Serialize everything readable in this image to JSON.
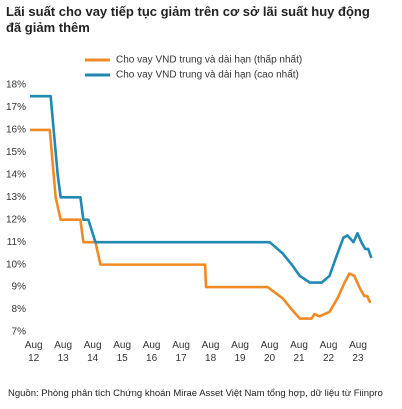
{
  "chart_data": {
    "type": "line",
    "title": "Lãi suất cho vay tiếp tục giảm trên cơ sở lãi suất huy động đã giảm thêm",
    "source": "Nguồn: Phòng phân tích Chứng khoán Mirae Asset Việt Nam tổng hợp, dữ liệu từ Fiinpro",
    "series": [
      {
        "name": "Cho vay VND trung và dài hạn (thấp nhất)",
        "color": "#f08a24",
        "x": [
          2012.5,
          2013.17,
          2013.37,
          2013.54,
          2014.21,
          2014.31,
          2014.72,
          2014.89,
          2018.44,
          2018.47,
          2020.56,
          2021.07,
          2021.38,
          2021.65,
          2022.05,
          2022.15,
          2022.32,
          2022.66,
          2022.93,
          2023.17,
          2023.33,
          2023.5,
          2023.67,
          2023.84,
          2023.94,
          2024.04
        ],
        "values": [
          16,
          16,
          13,
          12,
          12,
          11,
          11,
          10,
          10,
          9,
          9,
          8.5,
          8,
          7.6,
          7.6,
          7.8,
          7.7,
          7.9,
          8.5,
          9.2,
          9.6,
          9.5,
          9,
          8.6,
          8.6,
          8.3
        ]
      },
      {
        "name": "Cho vay VND trung và dài hạn (cao nhất)",
        "color": "#2289b3",
        "x": [
          2012.5,
          2013.2,
          2013.44,
          2013.54,
          2014.21,
          2014.31,
          2014.48,
          2014.72,
          2020.63,
          2021.07,
          2021.38,
          2021.65,
          2021.99,
          2022.39,
          2022.66,
          2022.93,
          2023.13,
          2023.27,
          2023.47,
          2023.61,
          2023.74,
          2023.87,
          2023.97,
          2024.08
        ],
        "values": [
          17.5,
          17.5,
          14,
          13,
          13,
          12,
          12,
          11,
          11,
          10.5,
          10,
          9.5,
          9.2,
          9.2,
          9.5,
          10.5,
          11.2,
          11.3,
          11,
          11.4,
          11,
          10.7,
          10.7,
          10.3
        ]
      }
    ],
    "xlim": [
      2012.5,
      2024.1
    ],
    "xticks": [
      {
        "value": 2012.625,
        "label": "Aug 12"
      },
      {
        "value": 2013.625,
        "label": "Aug 13"
      },
      {
        "value": 2014.625,
        "label": "Aug 14"
      },
      {
        "value": 2015.625,
        "label": "Aug 15"
      },
      {
        "value": 2016.625,
        "label": "Aug 16"
      },
      {
        "value": 2017.625,
        "label": "Aug 17"
      },
      {
        "value": 2018.625,
        "label": "Aug 18"
      },
      {
        "value": 2019.625,
        "label": "Aug 19"
      },
      {
        "value": 2020.625,
        "label": "Aug 20"
      },
      {
        "value": 2021.625,
        "label": "Aug 21"
      },
      {
        "value": 2022.625,
        "label": "Aug 22"
      },
      {
        "value": 2023.625,
        "label": "Aug 23"
      }
    ],
    "ylim": [
      7,
      18
    ],
    "yticks": [
      {
        "value": 7,
        "label": "7%"
      },
      {
        "value": 8,
        "label": "8%"
      },
      {
        "value": 9,
        "label": "9%"
      },
      {
        "value": 10,
        "label": "10%"
      },
      {
        "value": 11,
        "label": "11%"
      },
      {
        "value": 12,
        "label": "12%"
      },
      {
        "value": 13,
        "label": "13%"
      },
      {
        "value": 14,
        "label": "14%"
      },
      {
        "value": 15,
        "label": "15%"
      },
      {
        "value": 16,
        "label": "16%"
      },
      {
        "value": 17,
        "label": "17%"
      },
      {
        "value": 18,
        "label": "18%"
      }
    ],
    "grid": false
  }
}
